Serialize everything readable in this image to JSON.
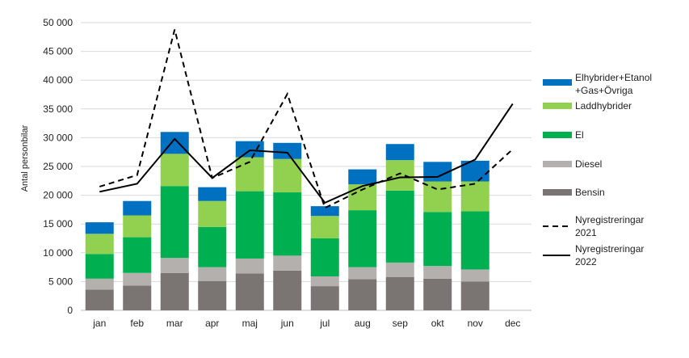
{
  "chart_data": {
    "type": "bar",
    "stacked": true,
    "ylabel": "Antal personbilar",
    "ylim": [
      0,
      50000
    ],
    "yticks": [
      0,
      5000,
      10000,
      15000,
      20000,
      25000,
      30000,
      35000,
      40000,
      45000,
      50000
    ],
    "ytick_labels": [
      "0",
      "5 000",
      "10 000",
      "15 000",
      "20 000",
      "25 000",
      "30 000",
      "35 000",
      "40 000",
      "45 000",
      "50 000"
    ],
    "categories": [
      "jan",
      "feb",
      "mar",
      "apr",
      "maj",
      "jun",
      "jul",
      "aug",
      "sep",
      "okt",
      "nov",
      "dec"
    ],
    "grid": true,
    "legend_position": "right",
    "series": [
      {
        "name": "Bensin",
        "color": "#7a7472",
        "values": [
          3600,
          4300,
          6500,
          5100,
          6400,
          6900,
          4200,
          5400,
          5800,
          5500,
          5000,
          null
        ]
      },
      {
        "name": "Diesel",
        "color": "#b3b0ae",
        "values": [
          1900,
          2200,
          2600,
          2400,
          2600,
          2600,
          1700,
          2100,
          2500,
          2200,
          2100,
          null
        ]
      },
      {
        "name": "El",
        "color": "#00b050",
        "values": [
          4300,
          6200,
          12500,
          7000,
          11700,
          11000,
          6600,
          9900,
          12500,
          9400,
          10100,
          null
        ]
      },
      {
        "name": "Laddhybrider",
        "color": "#92d050",
        "values": [
          3500,
          3800,
          5600,
          4500,
          5900,
          5800,
          3900,
          4500,
          5300,
          5300,
          5200,
          null
        ]
      },
      {
        "name": "Elhybrider+Etanol\n+Gas+Övriga",
        "color": "#0070c0",
        "values": [
          2000,
          2500,
          3800,
          2400,
          2800,
          2800,
          1700,
          2600,
          2800,
          3400,
          3600,
          null
        ]
      }
    ],
    "lines": [
      {
        "name": "Nyregistreringar\n2021",
        "style": "dashed",
        "color": "#000000",
        "values": [
          21500,
          23500,
          48800,
          23000,
          25800,
          37600,
          17800,
          21000,
          23800,
          21000,
          22000,
          28000
        ]
      },
      {
        "name": "Nyregistreringar\n2022",
        "style": "solid",
        "color": "#000000",
        "values": [
          20600,
          22000,
          29800,
          23000,
          27800,
          27400,
          18700,
          21600,
          23100,
          23200,
          26200,
          35900
        ]
      }
    ]
  }
}
